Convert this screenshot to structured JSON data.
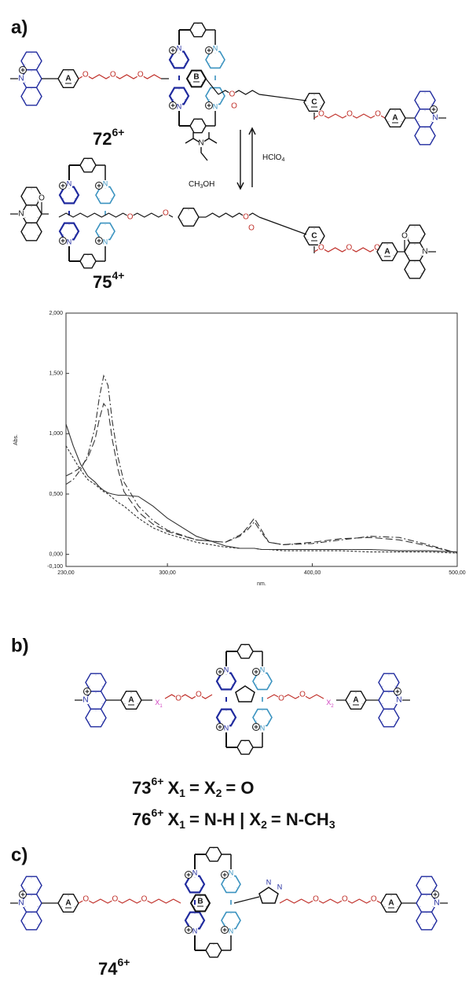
{
  "panels": {
    "a": {
      "label": "a)",
      "top": {
        "number": "72",
        "charge": "6+"
      },
      "bottom": {
        "number": "75",
        "charge": "4+"
      },
      "forward": {
        "solvent": [
          "CH",
          "3",
          "OH"
        ]
      },
      "backward": {
        "acid": [
          "HClO",
          "4"
        ]
      }
    },
    "b": {
      "label": "b)",
      "line1": [
        "73",
        "6+",
        "X",
        "1",
        "= X",
        "2",
        "= O"
      ],
      "line2": [
        "76",
        "6+",
        "X",
        "1",
        "= N-H | X",
        "2",
        "= N-CH",
        "3"
      ]
    },
    "c": {
      "label": "c)",
      "compound": {
        "number": "74",
        "charge": "6+"
      }
    }
  },
  "atoms": {
    "O": "O",
    "N": "N",
    "X1": [
      "X",
      "1"
    ],
    "X2": [
      "X",
      "2"
    ]
  },
  "rings": {
    "A": "A",
    "B": "B",
    "C": "C"
  },
  "chart_data": {
    "type": "line",
    "x_label": "nm.",
    "y_label": "Abs.",
    "x": [
      230,
      235,
      240,
      245,
      250,
      253,
      256,
      259,
      262,
      266,
      270,
      280,
      290,
      300,
      320,
      340,
      350,
      355,
      360,
      365,
      370,
      380,
      400,
      420,
      440,
      460,
      480,
      500
    ],
    "series": [
      {
        "color": "#333333",
        "line_style": "solid",
        "values": [
          1.08,
          0.9,
          0.75,
          0.65,
          0.6,
          0.56,
          0.53,
          0.51,
          0.5,
          0.49,
          0.49,
          0.48,
          0.4,
          0.3,
          0.15,
          0.07,
          0.05,
          0.05,
          0.05,
          0.04,
          0.04,
          0.04,
          0.04,
          0.04,
          0.04,
          0.03,
          0.03,
          0.02
        ]
      },
      {
        "color": "#333333",
        "line_style": "dotted",
        "values": [
          0.9,
          0.8,
          0.7,
          0.62,
          0.58,
          0.55,
          0.52,
          0.5,
          0.47,
          0.43,
          0.4,
          0.3,
          0.22,
          0.17,
          0.1,
          0.06,
          0.05,
          0.05,
          0.05,
          0.04,
          0.04,
          0.03,
          0.03,
          0.03,
          0.02,
          0.02,
          0.02,
          0.01
        ]
      },
      {
        "color": "#333333",
        "line_style": "dashdot",
        "values": [
          0.58,
          0.62,
          0.7,
          0.82,
          1.05,
          1.3,
          1.48,
          1.4,
          1.1,
          0.8,
          0.6,
          0.4,
          0.28,
          0.2,
          0.12,
          0.1,
          0.16,
          0.2,
          0.27,
          0.18,
          0.1,
          0.08,
          0.09,
          0.12,
          0.15,
          0.14,
          0.08,
          0.01
        ]
      },
      {
        "color": "#333333",
        "line_style": "dashed",
        "values": [
          0.65,
          0.68,
          0.72,
          0.8,
          0.95,
          1.12,
          1.25,
          1.2,
          0.95,
          0.7,
          0.52,
          0.35,
          0.25,
          0.19,
          0.12,
          0.1,
          0.15,
          0.22,
          0.3,
          0.2,
          0.1,
          0.08,
          0.1,
          0.13,
          0.14,
          0.12,
          0.07,
          0.01
        ]
      }
    ],
    "xlim": [
      230,
      500
    ],
    "ylim": [
      -0.1,
      2
    ],
    "xticks": [
      {
        "value": 230,
        "label": "230,00"
      },
      {
        "value": 300,
        "label": "300,00"
      },
      {
        "value": 400,
        "label": "400,00"
      },
      {
        "value": 500,
        "label": "500,00"
      }
    ],
    "yticks": [
      {
        "value": -0.1,
        "label": "-0,100"
      },
      {
        "value": 0,
        "label": "0,000"
      },
      {
        "value": 0.5,
        "label": "0,500"
      },
      {
        "value": 1,
        "label": "1,000"
      },
      {
        "value": 1.5,
        "label": "1,500"
      },
      {
        "value": 2,
        "label": "2,000"
      }
    ],
    "grid": false
  }
}
